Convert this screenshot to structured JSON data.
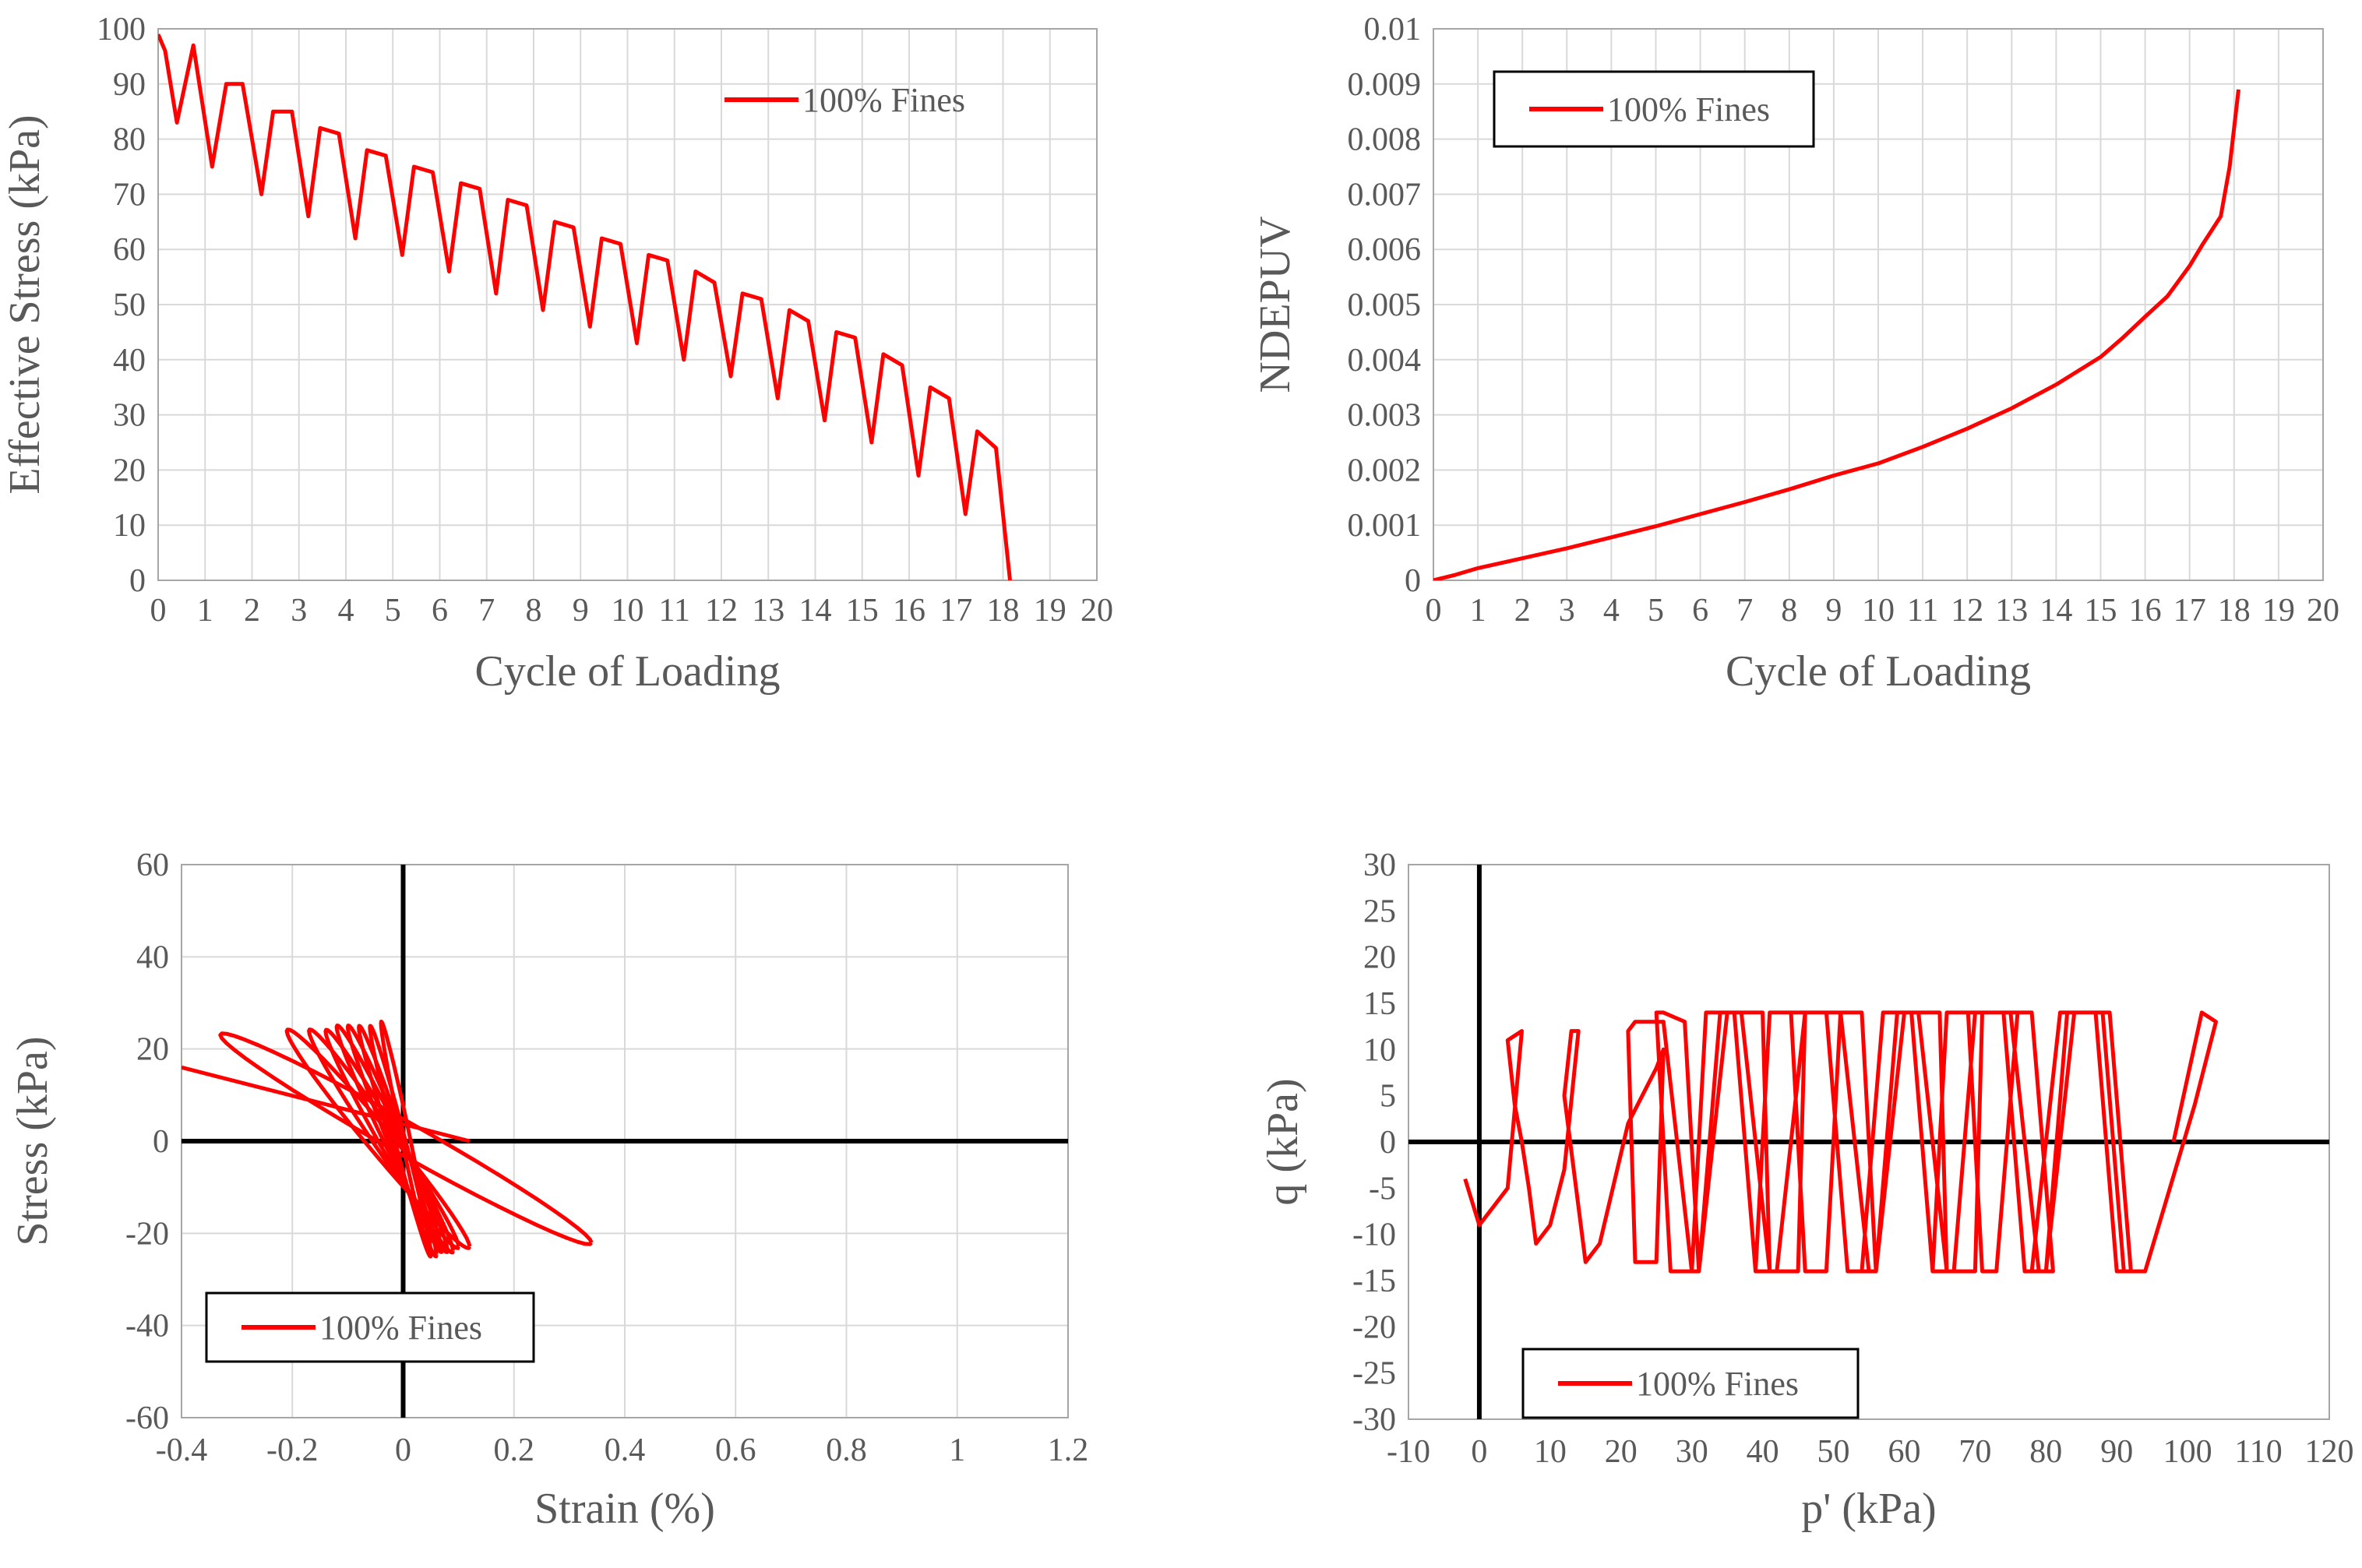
{
  "chart_data": [
    {
      "id": "effective-stress",
      "type": "line",
      "xlabel": "Cycle of Loading",
      "ylabel": "Effective Stress (kPa)",
      "xlim": [
        0,
        20
      ],
      "ylim": [
        0,
        100
      ],
      "xticks": [
        0,
        1,
        2,
        3,
        4,
        5,
        6,
        7,
        8,
        9,
        10,
        11,
        12,
        13,
        14,
        15,
        16,
        17,
        18,
        19,
        20
      ],
      "yticks": [
        0,
        10,
        20,
        30,
        40,
        50,
        60,
        70,
        80,
        90,
        100
      ],
      "grid": true,
      "legend": "top-right",
      "series": [
        {
          "name": "100% Fines",
          "color": "#ff0000",
          "x": [
            0,
            0.15,
            0.4,
            0.75,
            1.15,
            1.45,
            1.8,
            2.2,
            2.45,
            2.85,
            3.2,
            3.45,
            3.85,
            4.2,
            4.45,
            4.85,
            5.2,
            5.45,
            5.85,
            6.2,
            6.45,
            6.85,
            7.2,
            7.45,
            7.85,
            8.2,
            8.45,
            8.85,
            9.2,
            9.45,
            9.85,
            10.2,
            10.45,
            10.85,
            11.2,
            11.45,
            11.85,
            12.2,
            12.45,
            12.85,
            13.2,
            13.45,
            13.85,
            14.2,
            14.45,
            14.85,
            15.2,
            15.45,
            15.85,
            16.2,
            16.45,
            16.85,
            17.2,
            17.45,
            17.85,
            18.05,
            18.15
          ],
          "y": [
            99,
            96,
            83,
            97,
            75,
            90,
            90,
            70,
            85,
            85,
            66,
            82,
            81,
            62,
            78,
            77,
            59,
            75,
            74,
            56,
            72,
            71,
            52,
            69,
            68,
            49,
            65,
            64,
            46,
            62,
            61,
            43,
            59,
            58,
            40,
            56,
            54,
            37,
            52,
            51,
            33,
            49,
            47,
            29,
            45,
            44,
            25,
            41,
            39,
            19,
            35,
            33,
            12,
            27,
            24,
            8,
            0
          ]
        }
      ]
    },
    {
      "id": "ndepuv",
      "type": "line",
      "xlabel": "Cycle of Loading",
      "ylabel": "NDEPUV",
      "xlim": [
        0,
        20
      ],
      "ylim": [
        0,
        0.01
      ],
      "xticks": [
        0,
        1,
        2,
        3,
        4,
        5,
        6,
        7,
        8,
        9,
        10,
        11,
        12,
        13,
        14,
        15,
        16,
        17,
        18,
        19,
        20
      ],
      "yticks": [
        "0",
        "0.001",
        "0.002",
        "0.003",
        "0.004",
        "0.005",
        "0.006",
        "0.007",
        "0.008",
        "0.009",
        "0.01"
      ],
      "grid": true,
      "legend": "top-left",
      "series": [
        {
          "name": "100% Fines",
          "color": "#ff0000",
          "x": [
            0,
            0.5,
            1,
            2,
            3,
            4,
            5,
            6,
            7,
            8,
            9,
            10,
            11,
            12,
            13,
            14,
            15,
            15.5,
            16,
            16.5,
            17,
            17.3,
            17.5,
            17.7,
            17.9,
            18.1
          ],
          "y": [
            0,
            0.0001,
            0.00022,
            0.0004,
            0.00058,
            0.00078,
            0.00098,
            0.0012,
            0.00142,
            0.00165,
            0.0019,
            0.00212,
            0.00242,
            0.00275,
            0.00312,
            0.00355,
            0.00405,
            0.0044,
            0.00478,
            0.00515,
            0.0057,
            0.0061,
            0.00635,
            0.0066,
            0.0075,
            0.0089
          ]
        }
      ]
    },
    {
      "id": "stress-strain",
      "type": "line",
      "xlabel": "Strain (%)",
      "ylabel": "Stress (kPa)",
      "xlim": [
        -0.4,
        1.2
      ],
      "ylim": [
        -60,
        60
      ],
      "xticks": [
        "-0.4",
        "-0.2",
        "0",
        "0.2",
        "0.4",
        "0.6",
        "0.8",
        "1",
        "1.2"
      ],
      "yticks": [
        "-60",
        "-40",
        "-20",
        "0",
        "20",
        "40",
        "60"
      ],
      "grid": true,
      "legend": "bottom-left",
      "series": [
        {
          "name": "100% Fines",
          "color": "#ff0000",
          "loops": [
            {
              "xmin": -0.33,
              "xmax": 0.34,
              "ymin": -26,
              "ymax": 27
            },
            {
              "xmin": -0.21,
              "xmax": 0.12,
              "ymin": -27,
              "ymax": 28
            },
            {
              "xmin": -0.17,
              "xmax": 0.1,
              "ymin": -27,
              "ymax": 28
            },
            {
              "xmin": -0.14,
              "xmax": 0.09,
              "ymin": -28,
              "ymax": 28
            },
            {
              "xmin": -0.12,
              "xmax": 0.08,
              "ymin": -28,
              "ymax": 29
            },
            {
              "xmin": -0.1,
              "xmax": 0.07,
              "ymin": -28,
              "ymax": 29
            },
            {
              "xmin": -0.08,
              "xmax": 0.06,
              "ymin": -29,
              "ymax": 29
            },
            {
              "xmin": -0.06,
              "xmax": 0.05,
              "ymin": -29,
              "ymax": 29
            },
            {
              "xmin": -0.04,
              "xmax": 0.05,
              "ymin": -29,
              "ymax": 30
            }
          ],
          "tail_x": [
            -0.4,
            0.12
          ],
          "tail_y": [
            16,
            0
          ]
        }
      ]
    },
    {
      "id": "stress-path",
      "type": "line",
      "xlabel": "p' (kPa)",
      "ylabel": "q (kPa)",
      "xlim": [
        -10,
        120
      ],
      "ylim": [
        -30,
        30
      ],
      "xticks": [
        "-10",
        "0",
        "10",
        "20",
        "30",
        "40",
        "50",
        "60",
        "70",
        "80",
        "90",
        "100",
        "110",
        "120"
      ],
      "yticks": [
        "-30",
        "-25",
        "-20",
        "-15",
        "-10",
        "-5",
        "0",
        "5",
        "10",
        "15",
        "20",
        "25",
        "30"
      ],
      "grid": false,
      "legend": "bottom-center",
      "series": [
        {
          "name": "100% Fines",
          "color": "#ff0000",
          "x": [
            98,
            102,
            104,
            101,
            94,
            91,
            88,
            83,
            87,
            90,
            92,
            89,
            85,
            82,
            78,
            80,
            83,
            86,
            84,
            80,
            77,
            74,
            76,
            78,
            81,
            79,
            75,
            72,
            69,
            71,
            73,
            76,
            74,
            70,
            67,
            64,
            66,
            69,
            71,
            70,
            66,
            62,
            59,
            61,
            64,
            66,
            65,
            61,
            57,
            54,
            56,
            59,
            61,
            60,
            56,
            52,
            49,
            51,
            54,
            56,
            55,
            51,
            47,
            44,
            46,
            49,
            51,
            50,
            46,
            42,
            39,
            41,
            44,
            46,
            45,
            41,
            37,
            34,
            36,
            39,
            41,
            40,
            36,
            32,
            30,
            31,
            34,
            36,
            35,
            31,
            27,
            25,
            26,
            29,
            31,
            30,
            26,
            22,
            21,
            22,
            25,
            26,
            25,
            21,
            17,
            15,
            12,
            13,
            14,
            12,
            10,
            8,
            7,
            6,
            5,
            4,
            6,
            4,
            2,
            0,
            -2,
            -2
          ],
          "y": [
            0,
            14,
            13,
            4,
            -14,
            -14,
            14,
            14,
            14,
            -14,
            -14,
            14,
            14,
            14,
            -14,
            -14,
            14,
            14,
            14,
            -14,
            -14,
            14,
            14,
            14,
            -14,
            -14,
            14,
            14,
            14,
            -14,
            -14,
            14,
            14,
            14,
            -14,
            -14,
            14,
            14,
            14,
            -14,
            -14,
            14,
            14,
            14,
            -14,
            -14,
            14,
            14,
            14,
            -14,
            -14,
            14,
            14,
            14,
            -14,
            -14,
            14,
            14,
            14,
            -14,
            -14,
            14,
            14,
            14,
            -14,
            -14,
            14,
            14,
            14,
            -14,
            -14,
            14,
            14,
            14,
            -14,
            -14,
            14,
            14,
            14,
            -14,
            -14,
            14,
            14,
            14,
            -14,
            -14,
            14,
            14,
            14,
            -14,
            -14,
            14,
            14,
            13,
            -14,
            -14,
            13,
            13,
            12,
            -13,
            -13,
            10,
            8,
            2,
            -11,
            -13,
            5,
            12,
            12,
            -3,
            -9,
            -11,
            -5,
            0,
            4,
            11,
            12,
            -5,
            -7,
            -9,
            -4,
            -4
          ]
        }
      ]
    }
  ]
}
